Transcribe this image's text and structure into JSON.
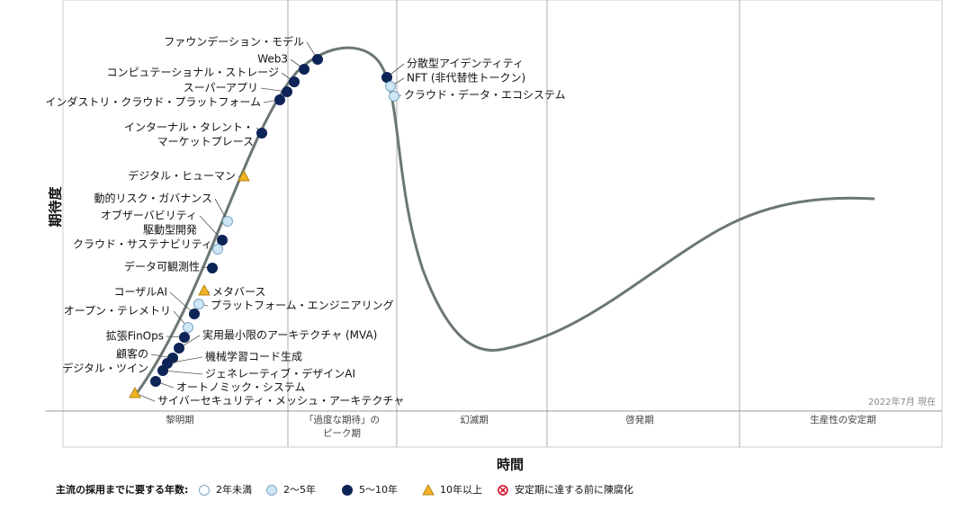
{
  "axis": {
    "y_label": "期待度",
    "x_label": "時間",
    "note": "2022年7月 現在"
  },
  "phases": [
    [
      "黎明期"
    ],
    [
      "「過度な期待」の",
      "ピーク期"
    ],
    [
      "幻滅期"
    ],
    [
      "啓発期"
    ],
    [
      "生産性の安定期"
    ]
  ],
  "legend": {
    "title": "主流の採用までに要する年数:",
    "items": [
      {
        "label": "2年未満",
        "color": "#ffffff"
      },
      {
        "label": "2～5年",
        "color": "#cfe6f5"
      },
      {
        "label": "5～10年",
        "color": "#0d2456"
      },
      {
        "label": "10年以上",
        "color": "#f0b323"
      },
      {
        "label": "安定期に達する前に陳腐化",
        "color": "#d0021b"
      }
    ]
  },
  "nodes": [
    {
      "label": [
        "ファウンデーション・モデル"
      ],
      "kind": 2
    },
    {
      "label": [
        "Web3"
      ],
      "kind": 2
    },
    {
      "label": [
        "コンピュテーショナル・ストレージ"
      ],
      "kind": 2
    },
    {
      "label": [
        "スーパーアプリ"
      ],
      "kind": 2
    },
    {
      "label": [
        "インダストリ・クラウド・プラットフォーム"
      ],
      "kind": 2
    },
    {
      "label": [
        "インターナル・タレント・",
        "マーケットプレース"
      ],
      "kind": 2
    },
    {
      "label": [
        "デジタル・ヒューマン"
      ],
      "kind": 3
    },
    {
      "label": [
        "動的リスク・ガバナンス"
      ],
      "kind": 1
    },
    {
      "label": [
        "オブザーバビリティ",
        "駆動型開発"
      ],
      "kind": 2
    },
    {
      "label": [
        "クラウド・サステナビリティ"
      ],
      "kind": 1
    },
    {
      "label": [
        "データ可観測性"
      ],
      "kind": 2
    },
    {
      "label": [
        "メタバース"
      ],
      "kind": 3
    },
    {
      "label": [
        "プラットフォーム・エンジニアリング"
      ],
      "kind": 1
    },
    {
      "label": [
        "コーザルAI"
      ],
      "kind": 2
    },
    {
      "label": [
        "オープン・テレメトリ"
      ],
      "kind": 1
    },
    {
      "label": [
        "拡張FinOps"
      ],
      "kind": 2
    },
    {
      "label": [
        "実用最小限のアーキテクチャ (MVA)"
      ],
      "kind": 2
    },
    {
      "label": [
        "顧客の",
        "デジタル・ツイン"
      ],
      "kind": 2
    },
    {
      "label": [
        "機械学習コード生成"
      ],
      "kind": 2
    },
    {
      "label": [
        "ジェネレーティブ・デザインAI"
      ],
      "kind": 2
    },
    {
      "label": [
        "オートノミック・システム"
      ],
      "kind": 2
    },
    {
      "label": [
        "サイバーセキュリティ・メッシュ・アーキテクチャ"
      ],
      "kind": 3
    },
    {
      "label": [
        "分散型アイデンティティ"
      ],
      "kind": 2
    },
    {
      "label": [
        "NFT (非代替性トークン)"
      ],
      "kind": 1
    },
    {
      "label": [
        "クラウド・データ・エコシステム"
      ],
      "kind": 1
    }
  ]
}
